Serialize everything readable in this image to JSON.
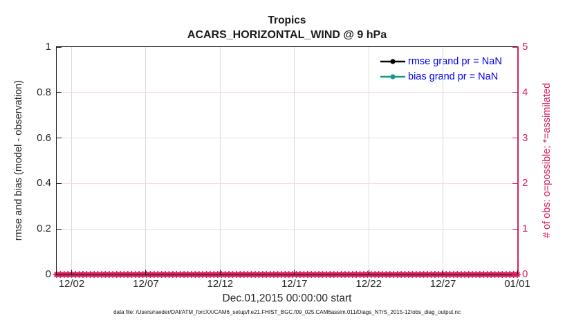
{
  "figure": {
    "title": "Tropics",
    "subtitle": "ACARS_HORIZONTAL_WIND @ 9 hPa",
    "xlabel": "Dec.01,2015 00:00:00 start",
    "ylabel_left": "rmse and bias (model - observation)",
    "ylabel_right": "# of obs: o=possible; *=assimilated",
    "footer": "data file: /Users/raeder/DAI/ATM_forcXX/CAM6_setup/f.e21.FHIST_BGC.f09_025.CAM6assim.011/Diags_NTrS_2015-12/obs_diag_output.nc"
  },
  "colors": {
    "axis_dark": "#1a1a1a",
    "tick_text_dark": "#262626",
    "obs_pink": "#d6205e",
    "grid_gray": "#dbdbdb",
    "grid_pink": "#f7d9e6",
    "legend_text_blue": "#0000ee",
    "rmse_black": "#000000",
    "bias_teal": "#0d9b8f"
  },
  "chart_data": {
    "type": "line",
    "title": "Tropics",
    "subtitle": "ACARS_HORIZONTAL_WIND @ 9 hPa",
    "xlabel": "Dec.01,2015 00:00:00 start",
    "ylabel_left": "rmse and bias (model - observation)",
    "ylabel_right": "# of obs: o=possible; *=assimilated",
    "x_axis": {
      "start": "12/01",
      "end": "01/01",
      "span_days": 31,
      "tick_labels": [
        "12/02",
        "12/07",
        "12/12",
        "12/17",
        "12/22",
        "12/27",
        "01/01"
      ],
      "tick_days": [
        1,
        6,
        11,
        16,
        21,
        26,
        31
      ]
    },
    "y_left": {
      "lim": [
        0,
        1
      ],
      "tick_values": [
        0,
        0.2,
        0.4,
        0.6,
        0.8,
        1
      ],
      "tick_labels": [
        "0",
        "0.2",
        "0.4",
        "0.6",
        "0.8",
        "1"
      ]
    },
    "y_right": {
      "lim": [
        0,
        5
      ],
      "tick_values": [
        0,
        1,
        2,
        3,
        4,
        5
      ],
      "tick_labels": [
        "0",
        "1",
        "2",
        "3",
        "4",
        "5"
      ]
    },
    "grid": true,
    "legend_position": "top-right",
    "series": [
      {
        "name": "rmse",
        "legend": "rmse grand pr = NaN",
        "color": "#000000",
        "marker": "circle",
        "values": "NaN"
      },
      {
        "name": "bias",
        "legend": "bias grand pr = NaN",
        "color": "#0d9b8f",
        "marker": "circle",
        "values": "NaN"
      }
    ],
    "obs_counts": {
      "color": "#d6205e",
      "n_times": 124,
      "possible_value": 0,
      "assimilated_value": 0,
      "possible_marker": "o",
      "assimilated_marker": "*"
    }
  }
}
